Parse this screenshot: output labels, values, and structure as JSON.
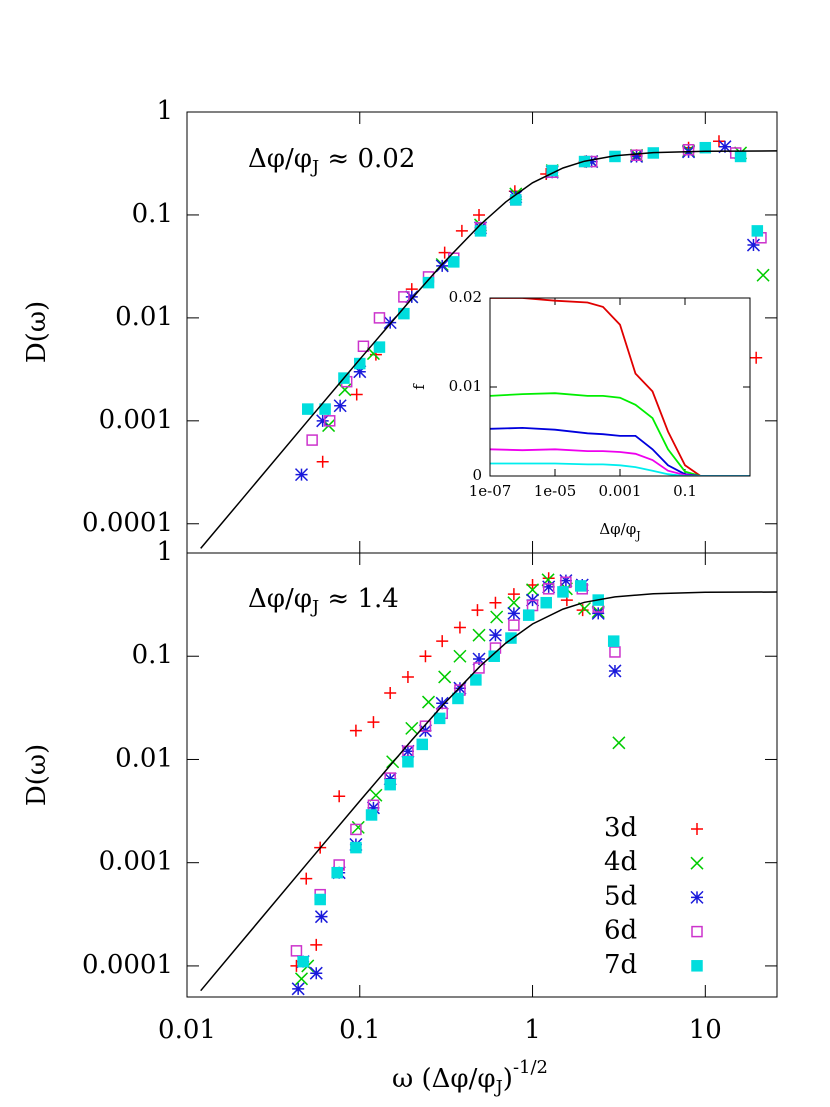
{
  "chart_data": [
    {
      "type": "scatter",
      "annotation": [
        "Δφ/φ",
        "J",
        " ≈ 0.02"
      ],
      "ylabel": "D(ω)",
      "logx": true,
      "logy": true,
      "xlim": [
        0.01,
        26
      ],
      "ylim": [
        5.2e-05,
        1
      ],
      "yticks": [
        1,
        0.1,
        0.01,
        0.001,
        0.0001
      ],
      "series": [
        {
          "color": "#ff0000",
          "marker": "plus",
          "x": [
            0.061,
            0.096,
            0.124,
            0.2,
            0.31,
            0.39,
            0.49,
            0.79,
            1.2,
            2,
            4,
            8,
            12,
            19.7
          ],
          "values": [
            0.0004,
            0.0018,
            0.0044,
            0.019,
            0.043,
            0.07,
            0.1,
            0.17,
            0.25,
            0.33,
            0.38,
            0.45,
            0.52,
            0.0041
          ]
        },
        {
          "color": "#00cc00",
          "marker": "cross",
          "x": [
            0.066,
            0.082,
            0.12,
            0.2,
            0.3,
            0.5,
            0.8,
            1.3,
            2.2,
            4,
            8,
            16,
            21.6
          ],
          "values": [
            0.0009,
            0.002,
            0.0045,
            0.016,
            0.033,
            0.08,
            0.16,
            0.27,
            0.33,
            0.38,
            0.42,
            0.4,
            0.026
          ]
        },
        {
          "color": "#1a1adb",
          "marker": "star",
          "x": [
            0.046,
            0.061,
            0.077,
            0.1,
            0.15,
            0.2,
            0.3,
            0.5,
            0.8,
            1.3,
            2.2,
            4,
            8,
            13,
            19
          ],
          "values": [
            0.0003,
            0.001,
            0.0014,
            0.003,
            0.009,
            0.016,
            0.032,
            0.075,
            0.15,
            0.26,
            0.33,
            0.37,
            0.41,
            0.46,
            0.051
          ]
        },
        {
          "color": "#cc33cc",
          "marker": "square-open",
          "x": [
            0.053,
            0.067,
            0.084,
            0.105,
            0.13,
            0.18,
            0.25,
            0.35,
            0.5,
            0.8,
            1.3,
            2.2,
            4,
            8,
            15,
            21
          ],
          "values": [
            0.00065,
            0.001,
            0.0024,
            0.0053,
            0.01,
            0.016,
            0.025,
            0.038,
            0.075,
            0.14,
            0.26,
            0.33,
            0.38,
            0.43,
            0.4,
            0.06
          ]
        },
        {
          "color": "#00dddd",
          "marker": "square-filled",
          "x": [
            0.05,
            0.063,
            0.081,
            0.1,
            0.13,
            0.18,
            0.25,
            0.35,
            0.5,
            0.8,
            1.3,
            2,
            3,
            5,
            10,
            16,
            20
          ],
          "values": [
            0.0013,
            0.0013,
            0.0026,
            0.0036,
            0.0052,
            0.011,
            0.022,
            0.035,
            0.07,
            0.14,
            0.27,
            0.33,
            0.37,
            0.4,
            0.45,
            0.37,
            0.07
          ]
        },
        {
          "color": "#000000",
          "marker": "line",
          "x": [
            0.012,
            0.02,
            0.05,
            0.1,
            0.2,
            0.3,
            0.5,
            0.7,
            1,
            1.5,
            2,
            3,
            5,
            10,
            26
          ],
          "values": [
            5.76e-05,
            0.00016,
            0.001,
            0.00396,
            0.0154,
            0.0332,
            0.0808,
            0.134,
            0.205,
            0.286,
            0.333,
            0.376,
            0.403,
            0.416,
            0.419
          ]
        }
      ]
    },
    {
      "type": "scatter",
      "annotation": [
        "Δφ/φ",
        "J",
        " ≈ 1.4"
      ],
      "ylabel": "D(ω)",
      "xlabel": [
        "ω (Δφ/φ",
        "J",
        ")",
        "-1/2"
      ],
      "logx": true,
      "logy": true,
      "xlim": [
        0.01,
        26
      ],
      "ylim": [
        5e-05,
        1
      ],
      "xticks": [
        0.01,
        0.1,
        1,
        10
      ],
      "yticks": [
        1,
        0.1,
        0.01,
        0.001,
        0.0001
      ],
      "legend": "lower right",
      "series": [
        {
          "name": "3d",
          "color": "#ff0000",
          "marker": "plus",
          "x": [
            0.043,
            0.056,
            0.049,
            0.059,
            0.076,
            0.095,
            0.12,
            0.15,
            0.19,
            0.24,
            0.3,
            0.38,
            0.48,
            0.61,
            0.78,
            1,
            1.24,
            1.58,
            1.95
          ],
          "values": [
            0.0001,
            0.00016,
            0.0007,
            0.0014,
            0.0044,
            0.019,
            0.023,
            0.044,
            0.063,
            0.1,
            0.14,
            0.19,
            0.28,
            0.33,
            0.4,
            0.49,
            0.57,
            0.35,
            0.28
          ]
        },
        {
          "name": "4d",
          "color": "#00cc00",
          "marker": "cross",
          "x": [
            0.046,
            0.05,
            0.098,
            0.124,
            0.155,
            0.2,
            0.25,
            0.31,
            0.38,
            0.49,
            0.62,
            0.78,
            1,
            1.23,
            1.57,
            2,
            2.4,
            3.16
          ],
          "values": [
            7.5e-05,
            0.0001,
            0.0022,
            0.0045,
            0.0095,
            0.02,
            0.036,
            0.063,
            0.1,
            0.16,
            0.24,
            0.33,
            0.44,
            0.55,
            0.45,
            0.29,
            0.27,
            0.0145
          ]
        },
        {
          "name": "5d",
          "color": "#1a1adb",
          "marker": "star",
          "x": [
            0.044,
            0.056,
            0.047,
            0.06,
            0.076,
            0.095,
            0.12,
            0.15,
            0.19,
            0.24,
            0.3,
            0.38,
            0.49,
            0.61,
            0.78,
            1,
            1.24,
            1.56,
            1.94,
            2.4,
            3
          ],
          "values": [
            6e-05,
            8.5e-05,
            0.00011,
            0.0003,
            0.0008,
            0.0015,
            0.0034,
            0.0065,
            0.012,
            0.019,
            0.035,
            0.049,
            0.094,
            0.16,
            0.26,
            0.35,
            0.47,
            0.54,
            0.49,
            0.26,
            0.072
          ]
        },
        {
          "name": "6d",
          "color": "#cc33cc",
          "marker": "square-open",
          "x": [
            0.043,
            0.059,
            0.076,
            0.095,
            0.12,
            0.15,
            0.19,
            0.24,
            0.3,
            0.38,
            0.49,
            0.61,
            0.78,
            1,
            1.24,
            1.56,
            1.94,
            2.4,
            3
          ],
          "values": [
            0.00014,
            0.00049,
            0.00095,
            0.0021,
            0.0036,
            0.0066,
            0.012,
            0.021,
            0.028,
            0.047,
            0.077,
            0.12,
            0.2,
            0.31,
            0.45,
            0.52,
            0.45,
            0.3,
            0.11
          ]
        },
        {
          "name": "7d",
          "color": "#00dddd",
          "marker": "square-filled",
          "x": [
            0.047,
            0.059,
            0.074,
            0.095,
            0.117,
            0.15,
            0.19,
            0.23,
            0.29,
            0.37,
            0.47,
            0.6,
            0.75,
            0.95,
            1.2,
            1.5,
            1.9,
            2.4,
            2.95
          ],
          "values": [
            0.00011,
            0.00044,
            0.0008,
            0.0014,
            0.0029,
            0.0057,
            0.0095,
            0.014,
            0.025,
            0.039,
            0.059,
            0.1,
            0.15,
            0.25,
            0.33,
            0.42,
            0.48,
            0.35,
            0.14
          ]
        },
        {
          "color": "#000000",
          "marker": "line",
          "x": [
            0.012,
            0.02,
            0.05,
            0.1,
            0.2,
            0.3,
            0.5,
            0.7,
            1,
            1.5,
            2,
            3,
            5,
            10,
            26
          ],
          "values": [
            5.76e-05,
            0.00016,
            0.001,
            0.00396,
            0.0154,
            0.0332,
            0.0808,
            0.134,
            0.205,
            0.286,
            0.333,
            0.376,
            0.403,
            0.416,
            0.419
          ]
        }
      ]
    },
    {
      "type": "line",
      "xlabel": [
        "Δφ/φ",
        "J"
      ],
      "ylabel": "f",
      "logx": true,
      "logy": false,
      "xlim": [
        1e-07,
        10
      ],
      "ylim": [
        0,
        0.02
      ],
      "xticks": [
        {
          "value": 1e-07,
          "label": "1e-07"
        },
        {
          "value": 1e-05,
          "label": "1e-05"
        },
        0.001,
        0.1
      ],
      "yticks": [
        0,
        0.01,
        0.02
      ],
      "series": [
        {
          "color": "#e00000",
          "x": [
            1e-07,
            1e-06,
            1e-05,
            0.0001,
            0.0003,
            0.001,
            0.003,
            0.01,
            0.03,
            0.1,
            0.3,
            1,
            10
          ],
          "values": [
            0.02,
            0.02,
            0.0197,
            0.0195,
            0.019,
            0.017,
            0.0115,
            0.0095,
            0.005,
            0.0012,
            0,
            0,
            0
          ]
        },
        {
          "color": "#00ee00",
          "x": [
            1e-07,
            1e-06,
            1e-05,
            0.0001,
            0.0003,
            0.001,
            0.003,
            0.01,
            0.03,
            0.1,
            0.3,
            1,
            10
          ],
          "values": [
            0.009,
            0.0092,
            0.0093,
            0.009,
            0.009,
            0.0088,
            0.008,
            0.0065,
            0.003,
            0.0005,
            0,
            0,
            0
          ]
        },
        {
          "color": "#0000dd",
          "x": [
            1e-07,
            1e-06,
            1e-05,
            0.0001,
            0.0003,
            0.001,
            0.003,
            0.01,
            0.03,
            0.1,
            0.3,
            1,
            10
          ],
          "values": [
            0.0053,
            0.0054,
            0.0052,
            0.0048,
            0.0047,
            0.0045,
            0.0045,
            0.003,
            0.0012,
            0.0002,
            0,
            0,
            0
          ]
        },
        {
          "color": "#ee00ee",
          "x": [
            1e-07,
            1e-06,
            1e-05,
            0.0001,
            0.0003,
            0.001,
            0.003,
            0.01,
            0.03,
            0.1,
            0.3,
            1,
            10
          ],
          "values": [
            0.003,
            0.0029,
            0.003,
            0.0028,
            0.0028,
            0.0027,
            0.0025,
            0.0018,
            0.0006,
            0.0001,
            0,
            0,
            0
          ]
        },
        {
          "color": "#00eeee",
          "x": [
            1e-07,
            1e-06,
            1e-05,
            0.0001,
            0.0003,
            0.001,
            0.003,
            0.01,
            0.03,
            0.1,
            0.3,
            1,
            10
          ],
          "values": [
            0.0014,
            0.0014,
            0.0014,
            0.0013,
            0.0013,
            0.0012,
            0.001,
            0.0006,
            0.0002,
            0,
            0,
            0,
            0
          ]
        }
      ]
    }
  ]
}
